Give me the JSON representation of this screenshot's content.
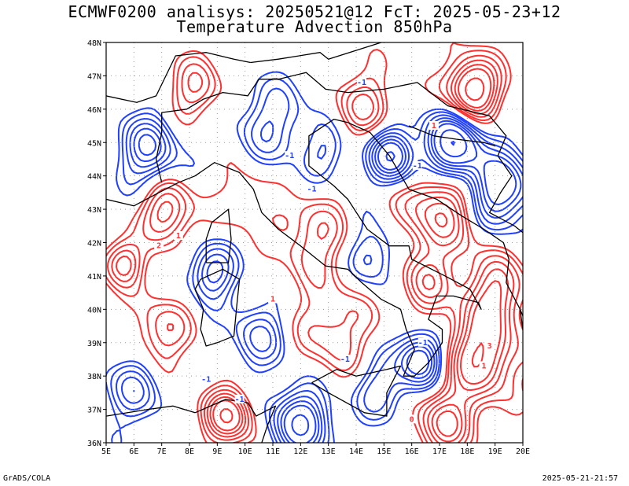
{
  "title": {
    "line1": "ECMWF0200 analisys: 20250521@12 FcT: 2025-05-23+12",
    "line2": "Temperature Advection 850hPa"
  },
  "map": {
    "lon_labels": [
      "5E",
      "6E",
      "7E",
      "8E",
      "9E",
      "10E",
      "11E",
      "12E",
      "13E",
      "14E",
      "15E",
      "16E",
      "17E",
      "18E",
      "19E",
      "20E"
    ],
    "lat_labels": [
      "36N",
      "37N",
      "38N",
      "39N",
      "40N",
      "41N",
      "42N",
      "43N",
      "44N",
      "45N",
      "46N",
      "47N",
      "48N"
    ],
    "colors": {
      "warm": "#ff3030",
      "cold": "#2040ff",
      "border": "#000000",
      "grid": "#9a9a9a"
    },
    "contour_labels": [
      {
        "text": "-1",
        "color": "cold",
        "lon": 12.4,
        "lat": 43.6
      },
      {
        "text": "-1",
        "color": "cold",
        "lon": 11.6,
        "lat": 44.6
      },
      {
        "text": "-1",
        "color": "cold",
        "lon": 14.2,
        "lat": 46.8
      },
      {
        "text": "-1",
        "color": "cold",
        "lon": 16.2,
        "lat": 44.3
      },
      {
        "text": "-1",
        "color": "cold",
        "lon": 8.6,
        "lat": 37.9
      },
      {
        "text": "-1",
        "color": "cold",
        "lon": 9.8,
        "lat": 37.3
      },
      {
        "text": "-1",
        "color": "cold",
        "lon": 16.4,
        "lat": 39.0
      },
      {
        "text": "-1",
        "color": "cold",
        "lon": 13.6,
        "lat": 38.5
      },
      {
        "text": "1",
        "color": "warm",
        "lon": 11.0,
        "lat": 40.3
      },
      {
        "text": "1",
        "color": "warm",
        "lon": 16.8,
        "lat": 45.5
      },
      {
        "text": "1",
        "color": "warm",
        "lon": 7.6,
        "lat": 42.2
      },
      {
        "text": "1",
        "color": "warm",
        "lon": 18.6,
        "lat": 38.3
      },
      {
        "text": "0",
        "color": "warm",
        "lon": 16.0,
        "lat": 36.7
      },
      {
        "text": "2",
        "color": "warm",
        "lon": 6.9,
        "lat": 41.9
      },
      {
        "text": "3",
        "color": "warm",
        "lon": 18.8,
        "lat": 38.9
      }
    ]
  },
  "footer": {
    "left": "GrADS/COLA",
    "right": "2025-05-21-21:57"
  }
}
